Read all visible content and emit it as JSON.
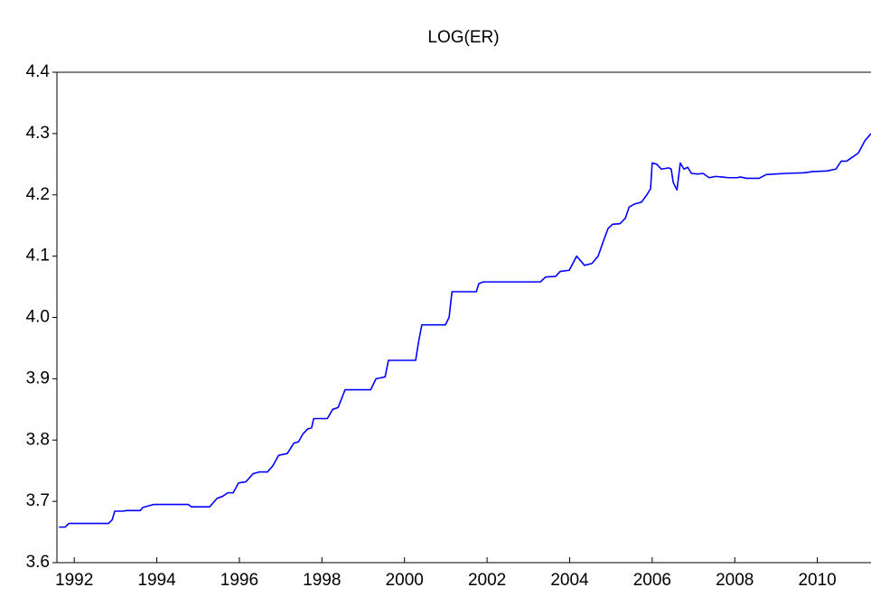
{
  "chart_data": {
    "type": "line",
    "title": "LOG(ER)",
    "xlim": [
      1991.58,
      2011.3
    ],
    "xticks": [
      1992,
      1994,
      1996,
      1998,
      2000,
      2002,
      2004,
      2006,
      2008,
      2010
    ],
    "ylim": [
      3.6,
      4.4
    ],
    "yticks": [
      3.6,
      3.7,
      3.8,
      3.9,
      {
        "value": 4,
        "label": "4.0"
      },
      4.1,
      4.2,
      4.3,
      4.4
    ],
    "grid": false,
    "series": [
      {
        "name": "LOG(ER)",
        "color": "#0000ff",
        "x": [
          1991.63,
          1991.78,
          1991.87,
          1992.83,
          1992.92,
          1992.98,
          1993.16,
          1993.27,
          1993.6,
          1993.66,
          1993.93,
          1994.76,
          1994.84,
          1995.28,
          1995.46,
          1995.59,
          1995.72,
          1995.85,
          1995.98,
          1996.16,
          1996.33,
          1996.49,
          1996.68,
          1996.81,
          1996.95,
          1997.16,
          1997.32,
          1997.43,
          1997.54,
          1997.65,
          1997.75,
          1997.8,
          1998.13,
          1998.26,
          1998.39,
          1998.56,
          1999.18,
          1999.31,
          1999.53,
          1999.61,
          2000.27,
          2000.34,
          2000.42,
          2000.99,
          2001.08,
          2001.15,
          2001.74,
          2001.8,
          2001.91,
          2003.29,
          2003.42,
          2003.66,
          2003.77,
          2003.99,
          2004.17,
          2004.36,
          2004.54,
          2004.69,
          2004.82,
          2004.93,
          2005.04,
          2005.22,
          2005.35,
          2005.44,
          2005.57,
          2005.74,
          2005.87,
          2005.96,
          2006.0,
          2006.11,
          2006.22,
          2006.4,
          2006.46,
          2006.51,
          2006.6,
          2006.68,
          2006.77,
          2006.86,
          2006.95,
          2007.1,
          2007.23,
          2007.38,
          2007.54,
          2007.71,
          2007.84,
          2008.04,
          2008.15,
          2008.28,
          2008.59,
          2008.76,
          2008.98,
          2009.24,
          2009.68,
          2009.9,
          2010.23,
          2010.45,
          2010.58,
          2010.71,
          2010.86,
          2010.99,
          2011.15,
          2011.3
        ],
        "values": [
          3.658,
          3.658,
          3.664,
          3.664,
          3.67,
          3.684,
          3.684,
          3.685,
          3.685,
          3.69,
          3.695,
          3.695,
          3.691,
          3.691,
          3.705,
          3.708,
          3.714,
          3.714,
          3.73,
          3.732,
          3.745,
          3.748,
          3.748,
          3.758,
          3.775,
          3.778,
          3.795,
          3.797,
          3.81,
          3.818,
          3.82,
          3.835,
          3.835,
          3.85,
          3.853,
          3.882,
          3.882,
          3.9,
          3.903,
          3.93,
          3.93,
          3.96,
          3.988,
          3.988,
          4.0,
          4.042,
          4.042,
          4.055,
          4.058,
          4.058,
          4.066,
          4.067,
          4.075,
          4.077,
          4.1,
          4.085,
          4.088,
          4.1,
          4.125,
          4.145,
          4.152,
          4.153,
          4.162,
          4.18,
          4.185,
          4.188,
          4.2,
          4.21,
          4.252,
          4.25,
          4.242,
          4.244,
          4.242,
          4.22,
          4.208,
          4.252,
          4.242,
          4.245,
          4.235,
          4.234,
          4.235,
          4.228,
          4.23,
          4.229,
          4.228,
          4.228,
          4.229,
          4.227,
          4.227,
          4.233,
          4.234,
          4.235,
          4.236,
          4.238,
          4.239,
          4.242,
          4.255,
          4.255,
          4.262,
          4.268,
          4.288,
          4.3
        ]
      }
    ]
  }
}
